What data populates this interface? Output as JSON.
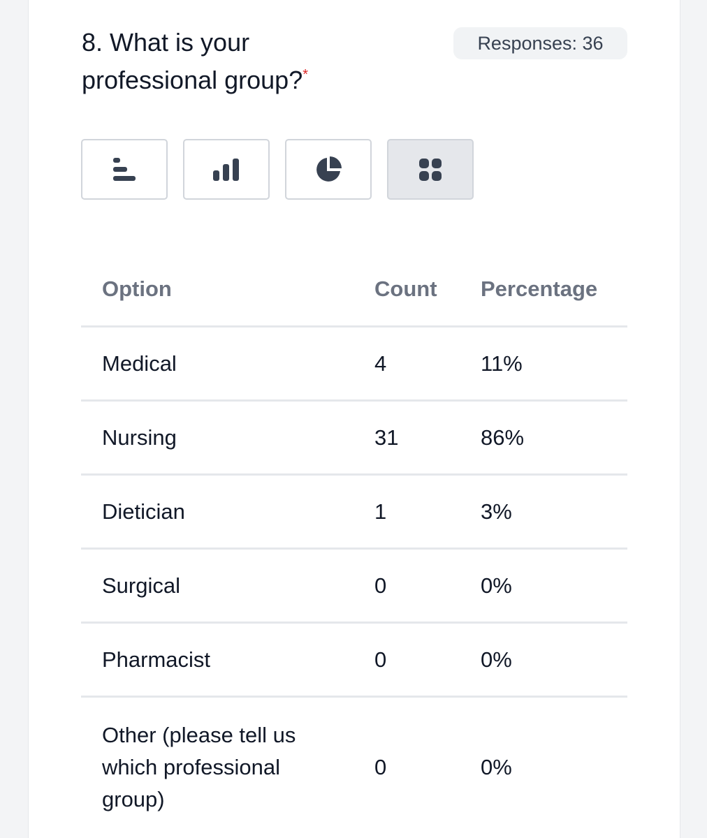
{
  "question": {
    "title": "8. What is your professional group?",
    "required_marker": "*",
    "responses_label": "Responses: 36"
  },
  "view_buttons": [
    {
      "icon": "horizontal-bar-chart-icon",
      "active": false
    },
    {
      "icon": "vertical-bar-chart-icon",
      "active": false
    },
    {
      "icon": "pie-chart-icon",
      "active": false
    },
    {
      "icon": "grid-table-icon",
      "active": true
    }
  ],
  "table": {
    "headers": [
      "Option",
      "Count",
      "Percentage"
    ],
    "rows": [
      {
        "option": "Medical",
        "count": "4",
        "percentage": "11%"
      },
      {
        "option": "Nursing",
        "count": "31",
        "percentage": "86%"
      },
      {
        "option": "Dietician",
        "count": "1",
        "percentage": "3%"
      },
      {
        "option": "Surgical",
        "count": "0",
        "percentage": "0%"
      },
      {
        "option": "Pharmacist",
        "count": "0",
        "percentage": "0%"
      },
      {
        "option": "Other (please tell us which professional group)",
        "count": "0",
        "percentage": "0%"
      }
    ]
  },
  "colors": {
    "accent_dark": "#374151",
    "required": "#dc2626",
    "header_text": "#6b7280",
    "border": "#e5e7eb"
  }
}
